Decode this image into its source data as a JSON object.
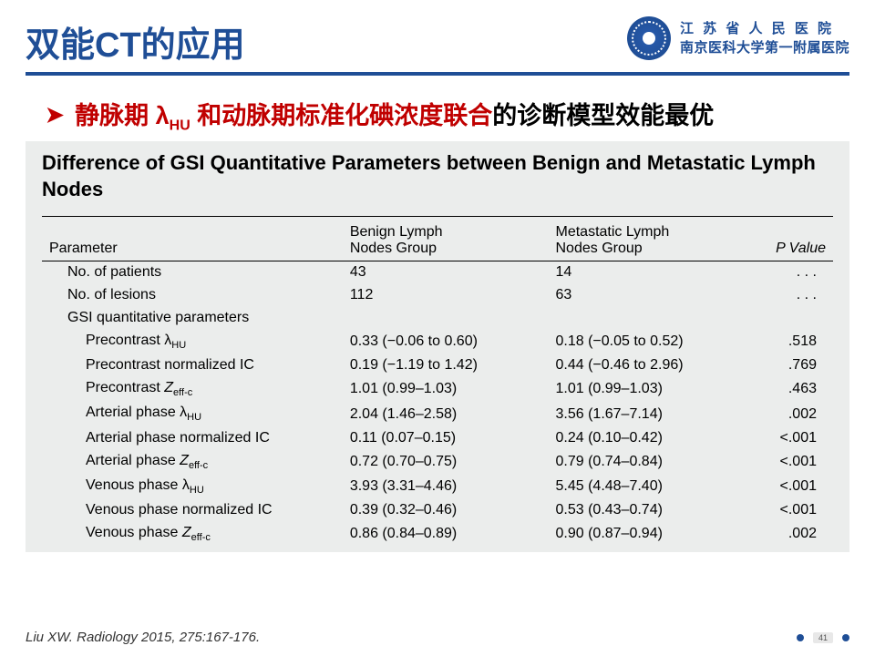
{
  "header": {
    "title": "双能CT的应用",
    "hospital_line1": "江 苏 省 人 民 医 院",
    "hospital_line2": "南京医科大学第一附属医院"
  },
  "subtitle": {
    "red_part": "静脉期 λ",
    "red_sub": "HU",
    "red_part2": " 和动脉期标准化碘浓度联合",
    "black_part": "的诊断模型效能最优"
  },
  "table": {
    "title": "Difference of GSI Quantitative Parameters between Benign and Metastatic Lymph Nodes",
    "columns": {
      "c1": "Parameter",
      "c2_a": "Benign Lymph",
      "c2_b": "Nodes Group",
      "c3_a": "Metastatic Lymph",
      "c3_b": "Nodes Group",
      "c4": "P Value"
    },
    "rows": [
      {
        "indent": 1,
        "label": "No. of patients",
        "benign": "43",
        "meta": "14",
        "p": ". . .",
        "section": false
      },
      {
        "indent": 1,
        "label": "No. of lesions",
        "benign": "112",
        "meta": "63",
        "p": ". . .",
        "section": false
      },
      {
        "indent": 1,
        "label": "GSI quantitative parameters",
        "benign": "",
        "meta": "",
        "p": "",
        "section": true
      },
      {
        "indent": 2,
        "label": "Precontrast λ",
        "sub": "HU",
        "benign": "0.33 (−0.06 to 0.60)",
        "meta": "0.18 (−0.05 to 0.52)",
        "p": ".518"
      },
      {
        "indent": 2,
        "label": "Precontrast normalized IC",
        "benign": "0.19 (−1.19 to 1.42)",
        "meta": "0.44 (−0.46 to 2.96)",
        "p": ".769"
      },
      {
        "indent": 2,
        "label": "Precontrast ",
        "ital": "Z",
        "sub": "eff-c",
        "benign": "1.01 (0.99–1.03)",
        "meta": "1.01 (0.99–1.03)",
        "p": ".463"
      },
      {
        "indent": 2,
        "label": "Arterial phase λ",
        "sub": "HU",
        "benign": "2.04 (1.46–2.58)",
        "meta": "3.56 (1.67–7.14)",
        "p": ".002"
      },
      {
        "indent": 2,
        "label": "Arterial phase normalized IC",
        "benign": "0.11 (0.07–0.15)",
        "meta": "0.24 (0.10–0.42)",
        "p": "<.001"
      },
      {
        "indent": 2,
        "label": "Arterial phase ",
        "ital": "Z",
        "sub": "eff-c",
        "benign": "0.72 (0.70–0.75)",
        "meta": "0.79 (0.74–0.84)",
        "p": "<.001"
      },
      {
        "indent": 2,
        "label": "Venous phase λ",
        "sub": "HU",
        "benign": "3.93 (3.31–4.46)",
        "meta": "5.45 (4.48–7.40)",
        "p": "<.001"
      },
      {
        "indent": 2,
        "label": "Venous phase normalized IC",
        "benign": "0.39 (0.32–0.46)",
        "meta": "0.53 (0.43–0.74)",
        "p": "<.001"
      },
      {
        "indent": 2,
        "label": "Venous phase ",
        "ital": "Z",
        "sub": "eff-c",
        "benign": "0.86 (0.84–0.89)",
        "meta": "0.90 (0.87–0.94)",
        "p": ".002"
      }
    ]
  },
  "citation": "Liu XW. Radiology 2015, 275:167-176.",
  "page_number": "41",
  "colors": {
    "brand": "#1f4e96",
    "accent_red": "#c00000",
    "table_bg": "#ebedec"
  }
}
